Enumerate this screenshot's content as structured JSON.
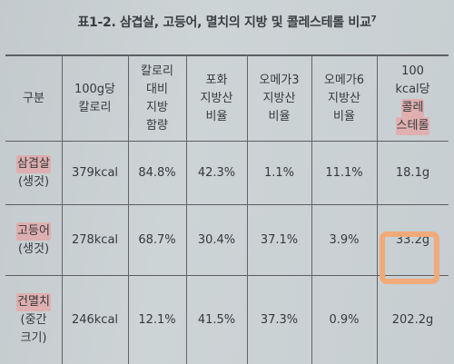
{
  "caption": {
    "text": "표1-2. 삼겹살, 고등어, 멸치의 지방 및 콜레스테롤 비교",
    "footnote": "7"
  },
  "table": {
    "headers": [
      [
        "구분"
      ],
      [
        "100g당",
        "칼로리"
      ],
      [
        "칼로리",
        "대비",
        "지방",
        "함량"
      ],
      [
        "포화",
        "지방산",
        "비율"
      ],
      [
        "오메가3",
        "지방산",
        "비율"
      ],
      [
        "오메가6",
        "지방산",
        "비율"
      ],
      [
        "100",
        "kcal당",
        "콜레",
        "스테롤"
      ]
    ],
    "rows": [
      {
        "label": [
          "삼겹살",
          "(생것)"
        ],
        "values": [
          "379kcal",
          "84.8%",
          "42.3%",
          "1.1%",
          "11.1%",
          "18.1g"
        ]
      },
      {
        "label": [
          "고등어",
          "(생것)"
        ],
        "values": [
          "278kcal",
          "68.7%",
          "30.4%",
          "37.1%",
          "3.9%",
          "33.2g"
        ]
      },
      {
        "label": [
          "건멸치",
          "(중간",
          "크기)"
        ],
        "values": [
          "246kcal",
          "12.1%",
          "41.5%",
          "37.3%",
          "0.9%",
          "202.2g"
        ]
      }
    ]
  },
  "colors": {
    "highlight_pink": "#f39696",
    "highlight_box_orange": "#f3a874"
  }
}
